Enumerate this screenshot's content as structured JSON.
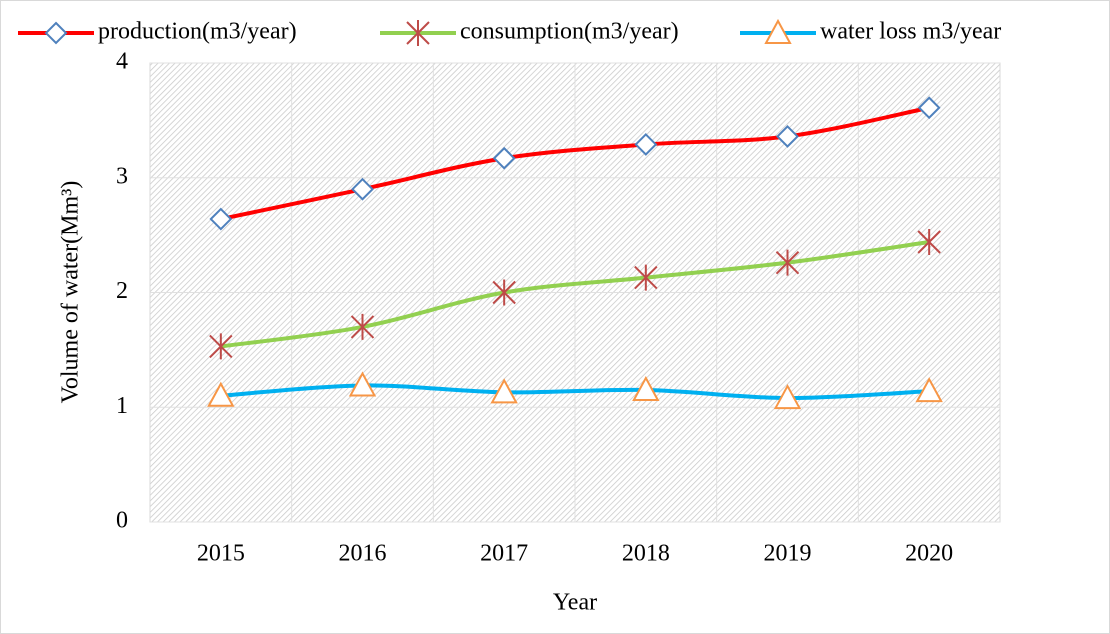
{
  "chart_data": {
    "type": "line",
    "x_label": "Year",
    "y_label": "Volume of water(Mm³)",
    "categories": [
      "2015",
      "2016",
      "2017",
      "2018",
      "2019",
      "2020"
    ],
    "series": [
      {
        "name": "production(m3/year)",
        "color": "#ff0000",
        "marker": "diamond",
        "marker_color": "#4f81bd",
        "values": [
          2.64,
          2.9,
          3.17,
          3.29,
          3.36,
          3.61
        ]
      },
      {
        "name": "consumption(m3/year)",
        "color": "#92d050",
        "marker": "asterisk",
        "marker_color": "#be4b48",
        "values": [
          1.53,
          1.7,
          2.0,
          2.13,
          2.26,
          2.44
        ]
      },
      {
        "name": "water loss m3/year",
        "color": "#00b0f0",
        "marker": "triangle",
        "marker_color": "#f79646",
        "values": [
          1.1,
          1.19,
          1.13,
          1.15,
          1.08,
          1.14
        ]
      }
    ],
    "ylim": [
      0,
      4
    ],
    "yticks": [
      0,
      1,
      2,
      3,
      4
    ],
    "grid": true,
    "legend": "top"
  }
}
